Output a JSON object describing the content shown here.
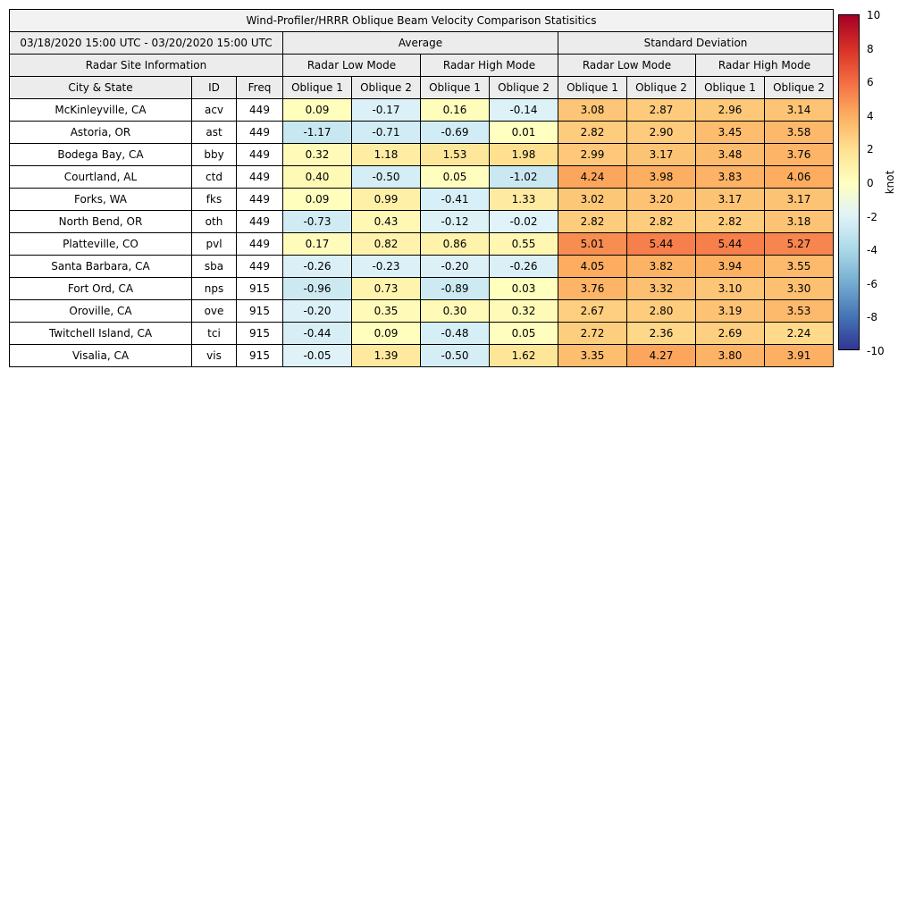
{
  "chart_data": {
    "type": "heatmap",
    "title": "Wind-Profiler/HRRR Oblique Beam Velocity Comparison Statisitics",
    "date_range": "03/18/2020 15:00 UTC - 03/20/2020 15:00 UTC",
    "units": "knot",
    "vmin": -10,
    "vmax": 10,
    "colorbar_ticks": [
      10,
      8,
      6,
      4,
      2,
      0,
      -2,
      -4,
      -6,
      -8,
      -10
    ],
    "colorbar_colors": [
      "#a50026",
      "#d73027",
      "#f46d43",
      "#fdae61",
      "#fee090",
      "#ffffbf",
      "#e0f3f8",
      "#abd9e9",
      "#74add1",
      "#4575b4",
      "#313695"
    ],
    "cell_colormap": {
      "positive": [
        "#ffffbf",
        "#fee090",
        "#fdae61",
        "#f46d43",
        "#d73027",
        "#a50026"
      ],
      "negative": [
        "#e0f3f8",
        "#abd9e9",
        "#74add1",
        "#4575b4",
        "#313695"
      ]
    },
    "columns": {
      "average": "Average",
      "std": "Standard Deviation",
      "site_info": "Radar Site Information",
      "low_mode": "Radar Low Mode",
      "high_mode": "Radar High Mode",
      "city": "City & State",
      "id": "ID",
      "freq": "Freq",
      "oblique1": "Oblique 1",
      "oblique2": "Oblique 2"
    },
    "value_columns": [
      "Avg Low Oblique 1",
      "Avg Low Oblique 2",
      "Avg High Oblique 1",
      "Avg High Oblique 2",
      "Std Low Oblique 1",
      "Std Low Oblique 2",
      "Std High Oblique 1",
      "Std High Oblique 2"
    ],
    "rows": [
      {
        "city": "McKinleyville, CA",
        "id": "acv",
        "freq": "449",
        "values": [
          0.09,
          -0.17,
          0.16,
          -0.14,
          3.08,
          2.87,
          2.96,
          3.14
        ]
      },
      {
        "city": "Astoria, OR",
        "id": "ast",
        "freq": "449",
        "values": [
          -1.17,
          -0.71,
          -0.69,
          0.01,
          2.82,
          2.9,
          3.45,
          3.58
        ]
      },
      {
        "city": "Bodega Bay, CA",
        "id": "bby",
        "freq": "449",
        "values": [
          0.32,
          1.18,
          1.53,
          1.98,
          2.99,
          3.17,
          3.48,
          3.76
        ]
      },
      {
        "city": "Courtland, AL",
        "id": "ctd",
        "freq": "449",
        "values": [
          0.4,
          -0.5,
          0.05,
          -1.02,
          4.24,
          3.98,
          3.83,
          4.06
        ]
      },
      {
        "city": "Forks, WA",
        "id": "fks",
        "freq": "449",
        "values": [
          0.09,
          0.99,
          -0.41,
          1.33,
          3.02,
          3.2,
          3.17,
          3.17
        ]
      },
      {
        "city": "North Bend, OR",
        "id": "oth",
        "freq": "449",
        "values": [
          -0.73,
          0.43,
          -0.12,
          -0.02,
          2.82,
          2.82,
          2.82,
          3.18
        ]
      },
      {
        "city": "Platteville, CO",
        "id": "pvl",
        "freq": "449",
        "values": [
          0.17,
          0.82,
          0.86,
          0.55,
          5.01,
          5.44,
          5.44,
          5.27
        ]
      },
      {
        "city": "Santa Barbara, CA",
        "id": "sba",
        "freq": "449",
        "values": [
          -0.26,
          -0.23,
          -0.2,
          -0.26,
          4.05,
          3.82,
          3.94,
          3.55
        ]
      },
      {
        "city": "Fort Ord, CA",
        "id": "nps",
        "freq": "915",
        "values": [
          -0.96,
          0.73,
          -0.89,
          0.03,
          3.76,
          3.32,
          3.1,
          3.3
        ]
      },
      {
        "city": "Oroville, CA",
        "id": "ove",
        "freq": "915",
        "values": [
          -0.2,
          0.35,
          0.3,
          0.32,
          2.67,
          2.8,
          3.19,
          3.53
        ]
      },
      {
        "city": "Twitchell Island, CA",
        "id": "tci",
        "freq": "915",
        "values": [
          -0.44,
          0.09,
          -0.48,
          0.05,
          2.72,
          2.36,
          2.69,
          2.24
        ]
      },
      {
        "city": "Visalia, CA",
        "id": "vis",
        "freq": "915",
        "values": [
          -0.05,
          1.39,
          -0.5,
          1.62,
          3.35,
          4.27,
          3.8,
          3.91
        ]
      }
    ]
  }
}
